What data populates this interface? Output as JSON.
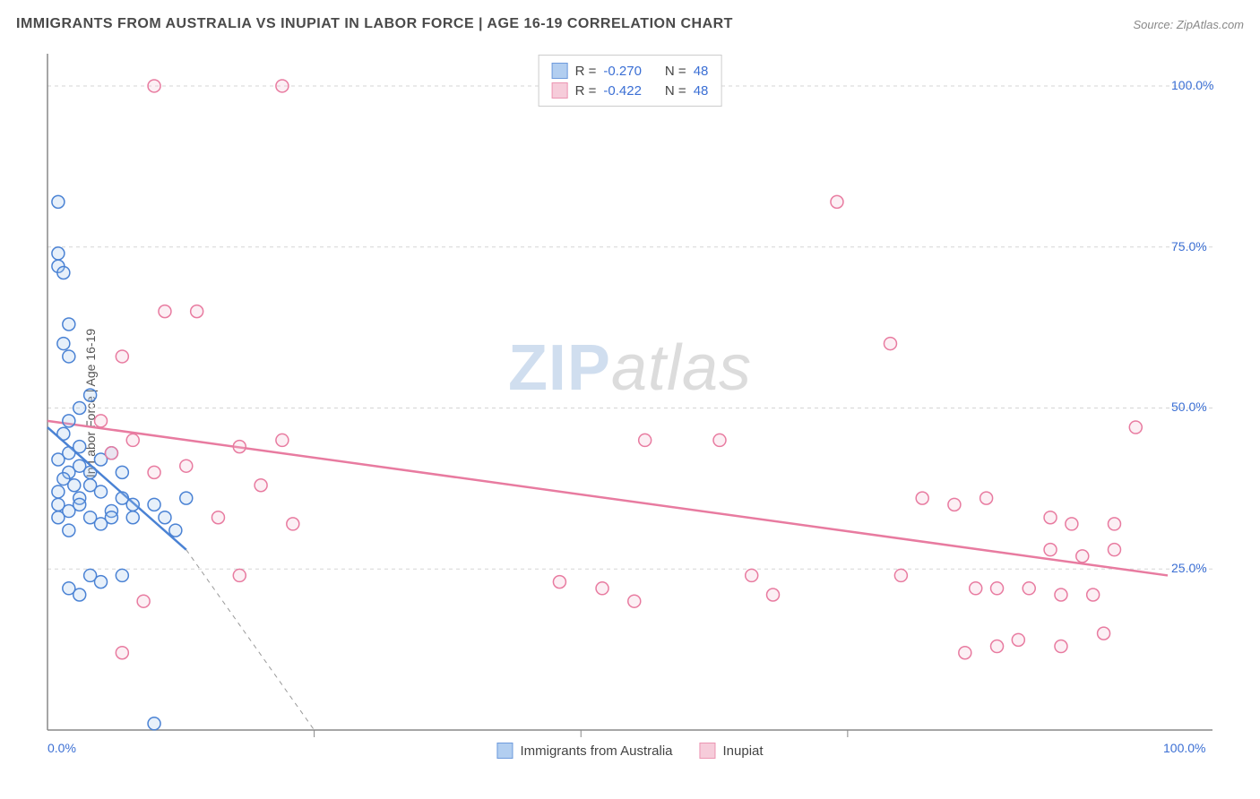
{
  "title": "IMMIGRANTS FROM AUSTRALIA VS INUPIAT IN LABOR FORCE | AGE 16-19 CORRELATION CHART",
  "source": "Source: ZipAtlas.com",
  "ylabel": "In Labor Force | Age 16-19",
  "watermark_zip": "ZIP",
  "watermark_atlas": "atlas",
  "chart": {
    "type": "scatter",
    "xlim": [
      0,
      105
    ],
    "ylim": [
      0,
      105
    ],
    "xtick_labels": [
      "0.0%",
      "100.0%"
    ],
    "ytick_labels": [
      "25.0%",
      "50.0%",
      "75.0%",
      "100.0%"
    ],
    "ytick_values": [
      25,
      50,
      75,
      100
    ],
    "xtick_minor": [
      25,
      50,
      75
    ],
    "grid_color": "#d5d5d5",
    "axis_color": "#888888",
    "background_color": "#ffffff",
    "marker_radius": 7,
    "marker_stroke_width": 1.5,
    "marker_fill_opacity": 0.25,
    "regression_line_width": 2.5,
    "series": [
      {
        "name": "Immigrants from Australia",
        "legend_label": "Immigrants from Australia",
        "color_stroke": "#4a82d4",
        "color_fill": "#9fc2ed",
        "r_value": "-0.270",
        "n_value": "48",
        "regression": {
          "x1": 0,
          "y1": 47,
          "x2": 13,
          "y2": 28,
          "dashed_extend_x": 25,
          "dashed_extend_y": 0
        },
        "points": [
          [
            1,
            42
          ],
          [
            2,
            48
          ],
          [
            1.5,
            46
          ],
          [
            3,
            50
          ],
          [
            2,
            43
          ],
          [
            4,
            52
          ],
          [
            1,
            37
          ],
          [
            2,
            40
          ],
          [
            3,
            41
          ],
          [
            1.5,
            39
          ],
          [
            2.5,
            38
          ],
          [
            1,
            35
          ],
          [
            3,
            36
          ],
          [
            4,
            38
          ],
          [
            5,
            37
          ],
          [
            2,
            34
          ],
          [
            1,
            33
          ],
          [
            3,
            35
          ],
          [
            6,
            34
          ],
          [
            7,
            36
          ],
          [
            8,
            35
          ],
          [
            4,
            33
          ],
          [
            2,
            31
          ],
          [
            5,
            32
          ],
          [
            1,
            72
          ],
          [
            1.5,
            71
          ],
          [
            1,
            74
          ],
          [
            2,
            63
          ],
          [
            1.5,
            60
          ],
          [
            2,
            58
          ],
          [
            1,
            82
          ],
          [
            3,
            44
          ],
          [
            4,
            40
          ],
          [
            5,
            42
          ],
          [
            6,
            33
          ],
          [
            8,
            33
          ],
          [
            2,
            22
          ],
          [
            3,
            21
          ],
          [
            10,
            35
          ],
          [
            11,
            33
          ],
          [
            12,
            31
          ],
          [
            13,
            36
          ],
          [
            4,
            24
          ],
          [
            5,
            23
          ],
          [
            7,
            24
          ],
          [
            10,
            1
          ],
          [
            6,
            43
          ],
          [
            7,
            40
          ]
        ]
      },
      {
        "name": "Inupiat",
        "legend_label": "Inupiat",
        "color_stroke": "#e87ba0",
        "color_fill": "#f5c0d2",
        "r_value": "-0.422",
        "n_value": "48",
        "regression": {
          "x1": 0,
          "y1": 48,
          "x2": 105,
          "y2": 24
        },
        "points": [
          [
            5,
            48
          ],
          [
            6,
            43
          ],
          [
            8,
            45
          ],
          [
            10,
            40
          ],
          [
            13,
            41
          ],
          [
            7,
            58
          ],
          [
            11,
            65
          ],
          [
            14,
            65
          ],
          [
            10,
            100
          ],
          [
            22,
            100
          ],
          [
            18,
            44
          ],
          [
            20,
            38
          ],
          [
            22,
            45
          ],
          [
            23,
            32
          ],
          [
            18,
            24
          ],
          [
            7,
            12
          ],
          [
            9,
            20
          ],
          [
            48,
            23
          ],
          [
            52,
            22
          ],
          [
            55,
            20
          ],
          [
            56,
            45
          ],
          [
            63,
            45
          ],
          [
            66,
            24
          ],
          [
            68,
            21
          ],
          [
            74,
            82
          ],
          [
            79,
            60
          ],
          [
            80,
            24
          ],
          [
            82,
            36
          ],
          [
            85,
            35
          ],
          [
            87,
            22
          ],
          [
            88,
            36
          ],
          [
            89,
            22
          ],
          [
            89,
            13
          ],
          [
            92,
            22
          ],
          [
            94,
            28
          ],
          [
            95,
            21
          ],
          [
            95,
            13
          ],
          [
            96,
            32
          ],
          [
            97,
            27
          ],
          [
            98,
            21
          ],
          [
            99,
            15
          ],
          [
            100,
            32
          ],
          [
            100,
            28
          ],
          [
            102,
            47
          ],
          [
            86,
            12
          ],
          [
            91,
            14
          ],
          [
            94,
            33
          ],
          [
            16,
            33
          ]
        ]
      }
    ]
  },
  "legend_top": {
    "r_label": "R =",
    "n_label": "N ="
  }
}
